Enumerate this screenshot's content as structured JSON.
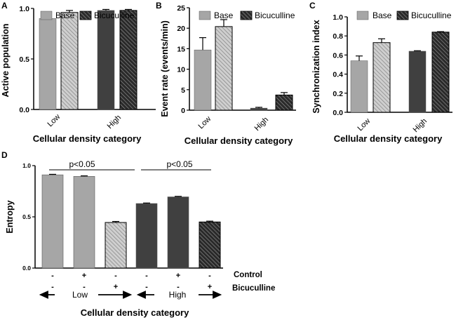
{
  "colors": {
    "base_low": "#a6a6a6",
    "base_high": "#404040",
    "bic_low_hatch_bg": "#cfcfcf",
    "bic_low_hatch_line": "#8a8a8a",
    "bic_high_hatch_bg": "#2a2a2a",
    "bic_high_hatch_line": "#9a9a9a",
    "axis": "#000000"
  },
  "chart_data": [
    {
      "id": "A",
      "type": "bar",
      "panel_label": "A",
      "ylabel": "Active population",
      "xlabel": "Cellular density category",
      "categories": [
        "Low",
        "High"
      ],
      "ylim": [
        0,
        1.0
      ],
      "yticks": [
        0.0,
        0.5,
        1.0
      ],
      "ytick_labels": [
        "0.0",
        "0.5",
        "1.0"
      ],
      "legend": [
        "Base",
        "Bicuculline"
      ],
      "series": [
        {
          "name": "Base",
          "values": [
            0.9,
            0.98
          ],
          "errors": [
            0.03,
            0.01
          ]
        },
        {
          "name": "Bicuculline",
          "values": [
            0.96,
            0.98
          ],
          "errors": [
            0.02,
            0.01
          ]
        }
      ]
    },
    {
      "id": "B",
      "type": "bar",
      "panel_label": "B",
      "ylabel": "Event rate (events/min)",
      "xlabel": "Cellular density category",
      "categories": [
        "Low",
        "High"
      ],
      "ylim": [
        0,
        25
      ],
      "yticks": [
        0,
        5,
        10,
        15,
        20,
        25
      ],
      "ytick_labels": [
        "0",
        "5",
        "10",
        "15",
        "20",
        "25"
      ],
      "legend": [
        "Base",
        "Bicuculline"
      ],
      "series": [
        {
          "name": "Base",
          "values": [
            14.7,
            0.5
          ],
          "errors": [
            3.0,
            0.2
          ]
        },
        {
          "name": "Bicuculline",
          "values": [
            20.4,
            3.7
          ],
          "errors": [
            1.7,
            0.6
          ]
        }
      ]
    },
    {
      "id": "C",
      "type": "bar",
      "panel_label": "C",
      "ylabel": "Synchronization index",
      "xlabel": "Cellular density category",
      "categories": [
        "Low",
        "High"
      ],
      "ylim": [
        0,
        1.0
      ],
      "yticks": [
        0.0,
        0.2,
        0.4,
        0.6,
        0.8,
        1.0
      ],
      "ytick_labels": [
        "0.0",
        "0.2",
        "0.4",
        "0.6",
        "0.8",
        "1.0"
      ],
      "legend": [
        "Base",
        "Bicuculline"
      ],
      "series": [
        {
          "name": "Base",
          "values": [
            0.54,
            0.64
          ],
          "errors": [
            0.05,
            0.005
          ]
        },
        {
          "name": "Bicuculline",
          "values": [
            0.73,
            0.84
          ],
          "errors": [
            0.04,
            0.005
          ]
        }
      ]
    },
    {
      "id": "D",
      "type": "bar",
      "panel_label": "D",
      "ylabel": "Entropy",
      "xlabel": "Cellular density category",
      "ylim": [
        0,
        1.0
      ],
      "yticks": [
        0.0,
        0.5,
        1.0
      ],
      "ytick_labels": [
        "0.0",
        "0.5",
        "1.0"
      ],
      "bars": [
        {
          "group": "Low",
          "control": "-",
          "bicuculline": "-",
          "value": 0.91,
          "error": 0.005
        },
        {
          "group": "Low",
          "control": "+",
          "bicuculline": "-",
          "value": 0.895,
          "error": 0.005
        },
        {
          "group": "Low",
          "control": "-",
          "bicuculline": "+",
          "value": 0.445,
          "error": 0.01
        },
        {
          "group": "High",
          "control": "-",
          "bicuculline": "-",
          "value": 0.63,
          "error": 0.005
        },
        {
          "group": "High",
          "control": "+",
          "bicuculline": "-",
          "value": 0.695,
          "error": 0.005
        },
        {
          "group": "High",
          "control": "-",
          "bicuculline": "+",
          "value": 0.45,
          "error": 0.008
        }
      ],
      "row_labels": {
        "control": "Control",
        "bicuculline": "Bicuculline"
      },
      "group_labels": [
        "Low",
        "High"
      ],
      "annotations": [
        "p<0.05",
        "p<0.05"
      ]
    }
  ]
}
